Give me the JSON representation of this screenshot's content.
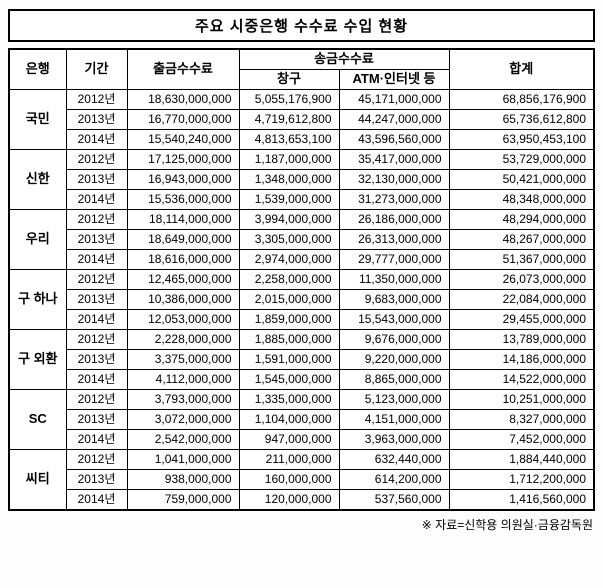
{
  "title": "주요 시중은행 수수료 수입 현황",
  "source_note": "※ 자료=신학용 의원실·금융감독원",
  "colors": {
    "border": "#000000",
    "background": "#ffffff",
    "text": "#000000"
  },
  "table": {
    "headers": {
      "bank": "은행",
      "period": "기간",
      "withdrawal_fee": "출금수수료",
      "remittance_fee": "송금수수료",
      "counter": "창구",
      "atm_internet": "ATM·인터넷 등",
      "total": "합계"
    },
    "banks": [
      {
        "name": "국민",
        "rows": [
          {
            "period": "2012년",
            "withdrawal": "18,630,000,000",
            "counter": "5,055,176,900",
            "atm": "45,171,000,000",
            "total": "68,856,176,900"
          },
          {
            "period": "2013년",
            "withdrawal": "16,770,000,000",
            "counter": "4,719,612,800",
            "atm": "44,247,000,000",
            "total": "65,736,612,800"
          },
          {
            "period": "2014년",
            "withdrawal": "15,540,240,000",
            "counter": "4,813,653,100",
            "atm": "43,596,560,000",
            "total": "63,950,453,100"
          }
        ]
      },
      {
        "name": "신한",
        "rows": [
          {
            "period": "2012년",
            "withdrawal": "17,125,000,000",
            "counter": "1,187,000,000",
            "atm": "35,417,000,000",
            "total": "53,729,000,000"
          },
          {
            "period": "2013년",
            "withdrawal": "16,943,000,000",
            "counter": "1,348,000,000",
            "atm": "32,130,000,000",
            "total": "50,421,000,000"
          },
          {
            "period": "2014년",
            "withdrawal": "15,536,000,000",
            "counter": "1,539,000,000",
            "atm": "31,273,000,000",
            "total": "48,348,000,000"
          }
        ]
      },
      {
        "name": "우리",
        "rows": [
          {
            "period": "2012년",
            "withdrawal": "18,114,000,000",
            "counter": "3,994,000,000",
            "atm": "26,186,000,000",
            "total": "48,294,000,000"
          },
          {
            "period": "2013년",
            "withdrawal": "18,649,000,000",
            "counter": "3,305,000,000",
            "atm": "26,313,000,000",
            "total": "48,267,000,000"
          },
          {
            "period": "2014년",
            "withdrawal": "18,616,000,000",
            "counter": "2,974,000,000",
            "atm": "29,777,000,000",
            "total": "51,367,000,000"
          }
        ]
      },
      {
        "name": "구 하나",
        "rows": [
          {
            "period": "2012년",
            "withdrawal": "12,465,000,000",
            "counter": "2,258,000,000",
            "atm": "11,350,000,000",
            "total": "26,073,000,000"
          },
          {
            "period": "2013년",
            "withdrawal": "10,386,000,000",
            "counter": "2,015,000,000",
            "atm": "9,683,000,000",
            "total": "22,084,000,000"
          },
          {
            "period": "2014년",
            "withdrawal": "12,053,000,000",
            "counter": "1,859,000,000",
            "atm": "15,543,000,000",
            "total": "29,455,000,000"
          }
        ]
      },
      {
        "name": "구 외환",
        "rows": [
          {
            "period": "2012년",
            "withdrawal": "2,228,000,000",
            "counter": "1,885,000,000",
            "atm": "9,676,000,000",
            "total": "13,789,000,000"
          },
          {
            "period": "2013년",
            "withdrawal": "3,375,000,000",
            "counter": "1,591,000,000",
            "atm": "9,220,000,000",
            "total": "14,186,000,000"
          },
          {
            "period": "2014년",
            "withdrawal": "4,112,000,000",
            "counter": "1,545,000,000",
            "atm": "8,865,000,000",
            "total": "14,522,000,000"
          }
        ]
      },
      {
        "name": "SC",
        "rows": [
          {
            "period": "2012년",
            "withdrawal": "3,793,000,000",
            "counter": "1,335,000,000",
            "atm": "5,123,000,000",
            "total": "10,251,000,000"
          },
          {
            "period": "2013년",
            "withdrawal": "3,072,000,000",
            "counter": "1,104,000,000",
            "atm": "4,151,000,000",
            "total": "8,327,000,000"
          },
          {
            "period": "2014년",
            "withdrawal": "2,542,000,000",
            "counter": "947,000,000",
            "atm": "3,963,000,000",
            "total": "7,452,000,000"
          }
        ]
      },
      {
        "name": "씨티",
        "rows": [
          {
            "period": "2012년",
            "withdrawal": "1,041,000,000",
            "counter": "211,000,000",
            "atm": "632,440,000",
            "total": "1,884,440,000"
          },
          {
            "period": "2013년",
            "withdrawal": "938,000,000",
            "counter": "160,000,000",
            "atm": "614,200,000",
            "total": "1,712,200,000"
          },
          {
            "period": "2014년",
            "withdrawal": "759,000,000",
            "counter": "120,000,000",
            "atm": "537,560,000",
            "total": "1,416,560,000"
          }
        ]
      }
    ]
  },
  "chart_data": {
    "type": "table",
    "title": "주요 시중은행 수수료 수입 현황",
    "columns": [
      "은행",
      "기간",
      "출금수수료",
      "송금수수료-창구",
      "송금수수료-ATM·인터넷 등",
      "합계"
    ],
    "rows": [
      [
        "국민",
        "2012년",
        18630000000,
        5055176900,
        45171000000,
        68856176900
      ],
      [
        "국민",
        "2013년",
        16770000000,
        4719612800,
        44247000000,
        65736612800
      ],
      [
        "국민",
        "2014년",
        15540240000,
        4813653100,
        43596560000,
        63950453100
      ],
      [
        "신한",
        "2012년",
        17125000000,
        1187000000,
        35417000000,
        53729000000
      ],
      [
        "신한",
        "2013년",
        16943000000,
        1348000000,
        32130000000,
        50421000000
      ],
      [
        "신한",
        "2014년",
        15536000000,
        1539000000,
        31273000000,
        48348000000
      ],
      [
        "우리",
        "2012년",
        18114000000,
        3994000000,
        26186000000,
        48294000000
      ],
      [
        "우리",
        "2013년",
        18649000000,
        3305000000,
        26313000000,
        48267000000
      ],
      [
        "우리",
        "2014년",
        18616000000,
        2974000000,
        29777000000,
        51367000000
      ],
      [
        "구 하나",
        "2012년",
        12465000000,
        2258000000,
        11350000000,
        26073000000
      ],
      [
        "구 하나",
        "2013년",
        10386000000,
        2015000000,
        9683000000,
        22084000000
      ],
      [
        "구 하나",
        "2014년",
        12053000000,
        1859000000,
        15543000000,
        29455000000
      ],
      [
        "구 외환",
        "2012년",
        2228000000,
        1885000000,
        9676000000,
        13789000000
      ],
      [
        "구 외환",
        "2013년",
        3375000000,
        1591000000,
        9220000000,
        14186000000
      ],
      [
        "구 외환",
        "2014년",
        4112000000,
        1545000000,
        8865000000,
        14522000000
      ],
      [
        "SC",
        "2012년",
        3793000000,
        1335000000,
        5123000000,
        10251000000
      ],
      [
        "SC",
        "2013년",
        3072000000,
        1104000000,
        4151000000,
        8327000000
      ],
      [
        "SC",
        "2014년",
        2542000000,
        947000000,
        3963000000,
        7452000000
      ],
      [
        "씨티",
        "2012년",
        1041000000,
        211000000,
        632440000,
        1884440000
      ],
      [
        "씨티",
        "2013년",
        938000000,
        160000000,
        614200000,
        1712200000
      ],
      [
        "씨티",
        "2014년",
        759000000,
        120000000,
        537560000,
        1416560000
      ]
    ],
    "source": "※ 자료=신학용 의원실·금융감독원",
    "legend_position": "none",
    "grid": true
  }
}
